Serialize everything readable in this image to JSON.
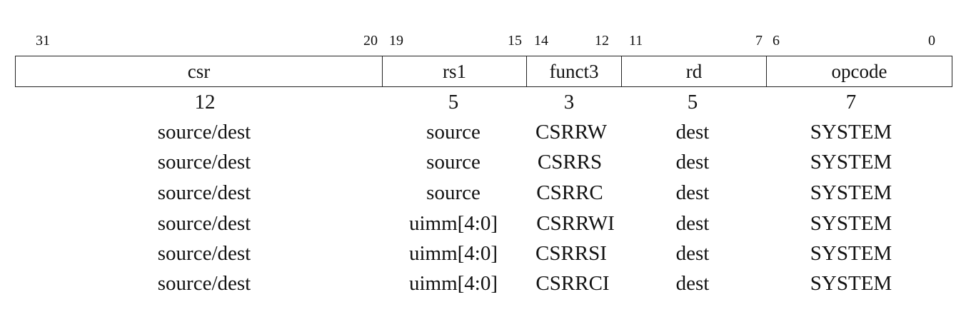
{
  "bit_labels": [
    "31",
    "20",
    "19",
    "15",
    "14",
    "12",
    "11",
    "7",
    "6",
    "0"
  ],
  "fields": [
    "csr",
    "rs1",
    "funct3",
    "rd",
    "opcode"
  ],
  "widths": [
    "12",
    "5",
    "3",
    "5",
    "7"
  ],
  "rows": [
    [
      "source/dest",
      "source",
      "CSRRW",
      "dest",
      "SYSTEM"
    ],
    [
      "source/dest",
      "source",
      "CSRRS",
      "dest",
      "SYSTEM"
    ],
    [
      "source/dest",
      "source",
      "CSRRC",
      "dest",
      "SYSTEM"
    ],
    [
      "source/dest",
      "uimm[4:0]",
      "CSRRWI",
      "dest",
      "SYSTEM"
    ],
    [
      "source/dest",
      "uimm[4:0]",
      "CSRRSI",
      "dest",
      "SYSTEM"
    ],
    [
      "source/dest",
      "uimm[4:0]",
      "CSRRCI",
      "dest",
      "SYSTEM"
    ]
  ]
}
